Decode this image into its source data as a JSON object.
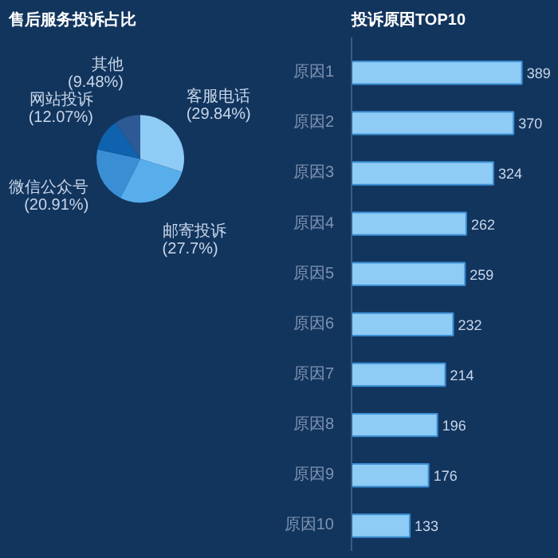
{
  "chart_data": [
    {
      "type": "pie",
      "title": "售后服务投诉占比",
      "categories": [
        "客服电话",
        "邮寄投诉",
        "微信公众号",
        "网站投诉",
        "其他"
      ],
      "values": [
        29.84,
        27.7,
        20.91,
        12.07,
        9.48
      ],
      "value_labels": [
        "(29.84%)",
        "(27.7%)",
        "(20.91%)",
        "(12.07%)",
        "(9.48%)"
      ],
      "colors": [
        "#8ecbf5",
        "#58aeeb",
        "#3a8fd4",
        "#0f62ad",
        "#2d5a94"
      ]
    },
    {
      "type": "bar",
      "orientation": "horizontal",
      "title": "投诉原因TOP10",
      "categories": [
        "原因1",
        "原因2",
        "原因3",
        "原因4",
        "原因5",
        "原因6",
        "原因7",
        "原因8",
        "原因9",
        "原因10"
      ],
      "values": [
        389,
        370,
        324,
        262,
        259,
        232,
        214,
        196,
        176,
        133
      ],
      "color": "#8ecbf5",
      "data_labels": true,
      "grid": false,
      "tick_labels": "y"
    }
  ]
}
